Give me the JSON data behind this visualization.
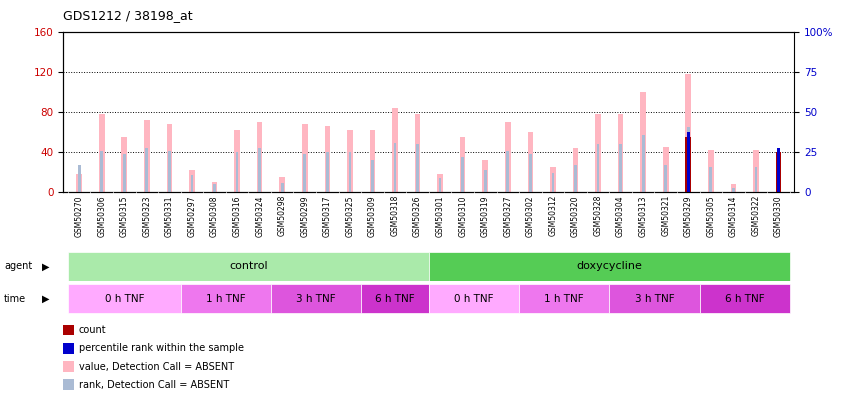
{
  "title": "GDS1212 / 38198_at",
  "samples": [
    "GSM50270",
    "GSM50306",
    "GSM50315",
    "GSM50323",
    "GSM50331",
    "GSM50297",
    "GSM50308",
    "GSM50316",
    "GSM50324",
    "GSM50298",
    "GSM50299",
    "GSM50317",
    "GSM50325",
    "GSM50309",
    "GSM50318",
    "GSM50326",
    "GSM50301",
    "GSM50310",
    "GSM50319",
    "GSM50327",
    "GSM50302",
    "GSM50312",
    "GSM50320",
    "GSM50328",
    "GSM50304",
    "GSM50313",
    "GSM50321",
    "GSM50329",
    "GSM50305",
    "GSM50314",
    "GSM50322",
    "GSM50330"
  ],
  "values": [
    18,
    78,
    55,
    72,
    68,
    22,
    10,
    62,
    70,
    15,
    68,
    66,
    62,
    62,
    84,
    78,
    18,
    55,
    32,
    70,
    60,
    25,
    44,
    78,
    78,
    100,
    45,
    118,
    42,
    8,
    42,
    40
  ],
  "ranks": [
    17,
    26,
    24,
    28,
    26,
    11,
    5,
    25,
    28,
    6,
    24,
    25,
    25,
    20,
    31,
    30,
    9,
    22,
    14,
    26,
    24,
    12,
    17,
    30,
    30,
    36,
    17,
    41,
    16,
    3,
    16,
    16
  ],
  "counts": [
    0,
    0,
    0,
    0,
    0,
    0,
    0,
    0,
    0,
    0,
    0,
    0,
    0,
    0,
    0,
    0,
    0,
    0,
    0,
    0,
    0,
    0,
    0,
    0,
    0,
    0,
    0,
    55,
    0,
    0,
    0,
    40
  ],
  "percentile_ranks": [
    0,
    0,
    0,
    0,
    0,
    0,
    0,
    0,
    0,
    0,
    0,
    0,
    0,
    0,
    0,
    0,
    0,
    0,
    0,
    0,
    0,
    0,
    0,
    0,
    0,
    0,
    0,
    38,
    0,
    0,
    0,
    28
  ],
  "agent_groups": [
    {
      "label": "control",
      "start": 0,
      "end": 15,
      "color": "#AAEAAA"
    },
    {
      "label": "doxycycline",
      "start": 16,
      "end": 31,
      "color": "#55CC55"
    }
  ],
  "time_groups": [
    {
      "label": "0 h TNF",
      "start": 0,
      "end": 4,
      "color": "#FFAAFF"
    },
    {
      "label": "1 h TNF",
      "start": 5,
      "end": 8,
      "color": "#EE77EE"
    },
    {
      "label": "3 h TNF",
      "start": 9,
      "end": 12,
      "color": "#DD55DD"
    },
    {
      "label": "6 h TNF",
      "start": 13,
      "end": 15,
      "color": "#CC33CC"
    },
    {
      "label": "0 h TNF",
      "start": 16,
      "end": 19,
      "color": "#FFAAFF"
    },
    {
      "label": "1 h TNF",
      "start": 20,
      "end": 23,
      "color": "#EE77EE"
    },
    {
      "label": "3 h TNF",
      "start": 24,
      "end": 27,
      "color": "#DD55DD"
    },
    {
      "label": "6 h TNF",
      "start": 28,
      "end": 31,
      "color": "#CC33CC"
    }
  ],
  "left_ylim": [
    0,
    160
  ],
  "left_yticks": [
    0,
    40,
    80,
    120,
    160
  ],
  "right_ylim": [
    0,
    100
  ],
  "right_yticks": [
    0,
    25,
    50,
    75,
    100
  ],
  "value_color": "#FFB6C1",
  "rank_color": "#AABBD4",
  "count_color": "#AA0000",
  "percentile_color": "#0000CC",
  "background_color": "#FFFFFF"
}
